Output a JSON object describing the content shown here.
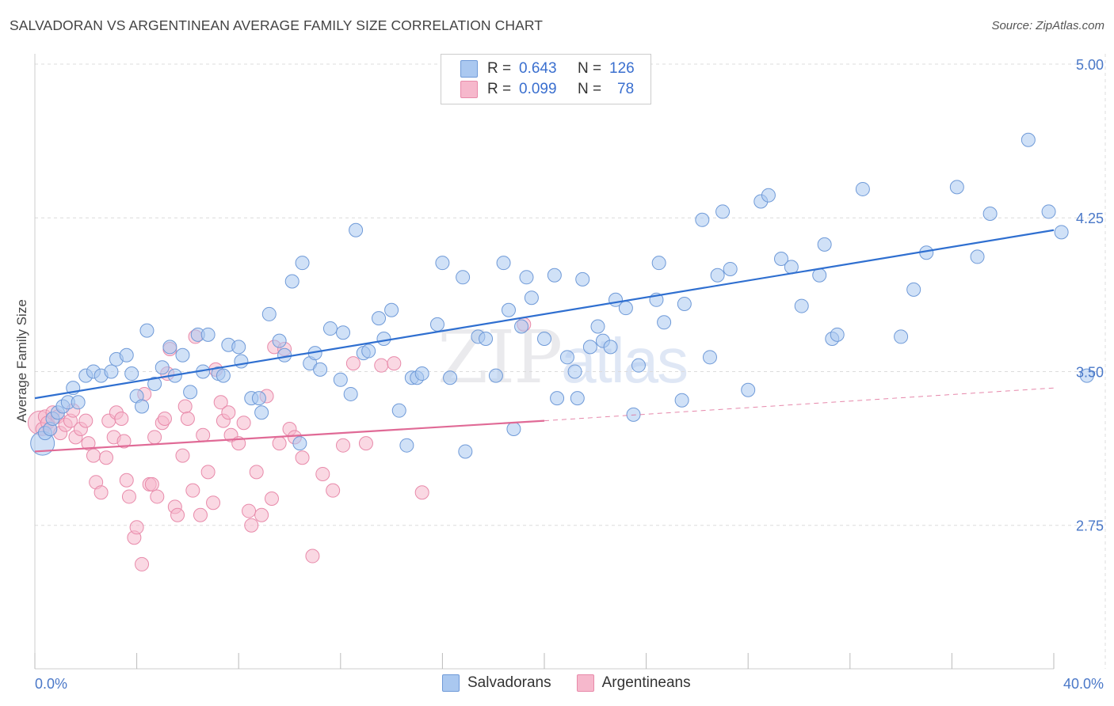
{
  "title": "SALVADORAN VS ARGENTINEAN AVERAGE FAMILY SIZE CORRELATION CHART",
  "source": "Source: ZipAtlas.com",
  "watermark": {
    "zip": "ZIP",
    "atlas": "atlas"
  },
  "legend": {
    "rows": [
      {
        "r_label": "R =",
        "r_value": "0.643",
        "n_label": "N =",
        "n_value": "126",
        "color": "#aac8f0"
      },
      {
        "r_label": "R =",
        "r_value": "0.099",
        "n_label": "N =",
        "n_value": "78",
        "color": "#f6b8cc"
      }
    ]
  },
  "bottom_legend": [
    {
      "label": "Salvadorans",
      "color": "#aac8f0"
    },
    {
      "label": "Argentineans",
      "color": "#f6b8cc"
    }
  ],
  "colors": {
    "blue_fill": "#aac8f0",
    "blue_stroke": "#6f9ad8",
    "blue_line": "#2f6fd0",
    "pink_fill": "#f6b8cc",
    "pink_stroke": "#e88aaa",
    "pink_line": "#e06a96",
    "grid": "#dcdcdc",
    "axis_label": "#4a78c8"
  },
  "chart_data": {
    "type": "scatter",
    "ylabel": "Average Family Size",
    "xlim": [
      0,
      40
    ],
    "ylim": [
      2.05,
      5.05
    ],
    "x_tick_labels": [
      "0.0%",
      "40.0%"
    ],
    "y_ticks": [
      2.75,
      3.5,
      4.25,
      5.0
    ],
    "y_tick_labels": [
      "2.75",
      "3.50",
      "4.25",
      "5.00"
    ],
    "grid": true,
    "series": [
      {
        "name": "Salvadorans",
        "r": 0.643,
        "n": 126,
        "trend": {
          "x": [
            0,
            40
          ],
          "y": [
            3.37,
            4.19
          ]
        },
        "points": [
          [
            0.3,
            3.15
          ],
          [
            0.4,
            3.2
          ],
          [
            0.6,
            3.22
          ],
          [
            0.7,
            3.27
          ],
          [
            0.9,
            3.3
          ],
          [
            1.1,
            3.33
          ],
          [
            1.3,
            3.35
          ],
          [
            1.5,
            3.42
          ],
          [
            1.7,
            3.35
          ],
          [
            2.0,
            3.48
          ],
          [
            2.3,
            3.5
          ],
          [
            2.6,
            3.48
          ],
          [
            3.0,
            3.5
          ],
          [
            3.2,
            3.56
          ],
          [
            3.6,
            3.58
          ],
          [
            3.8,
            3.49
          ],
          [
            4.0,
            3.38
          ],
          [
            4.2,
            3.33
          ],
          [
            4.4,
            3.7
          ],
          [
            4.7,
            3.44
          ],
          [
            5.0,
            3.52
          ],
          [
            5.3,
            3.62
          ],
          [
            5.5,
            3.48
          ],
          [
            5.8,
            3.58
          ],
          [
            6.1,
            3.4
          ],
          [
            6.4,
            3.68
          ],
          [
            6.6,
            3.5
          ],
          [
            6.8,
            3.68
          ],
          [
            7.2,
            3.49
          ],
          [
            7.4,
            3.48
          ],
          [
            7.6,
            3.63
          ],
          [
            8.0,
            3.62
          ],
          [
            8.1,
            3.55
          ],
          [
            8.5,
            3.37
          ],
          [
            8.8,
            3.37
          ],
          [
            8.9,
            3.3
          ],
          [
            9.2,
            3.78
          ],
          [
            9.6,
            3.65
          ],
          [
            9.8,
            3.58
          ],
          [
            10.1,
            3.94
          ],
          [
            10.4,
            3.15
          ],
          [
            10.5,
            4.03
          ],
          [
            10.8,
            3.54
          ],
          [
            11.0,
            3.59
          ],
          [
            11.2,
            3.51
          ],
          [
            11.6,
            3.71
          ],
          [
            12.0,
            3.46
          ],
          [
            12.1,
            3.69
          ],
          [
            12.4,
            3.39
          ],
          [
            12.6,
            4.19
          ],
          [
            12.9,
            3.59
          ],
          [
            13.1,
            3.6
          ],
          [
            13.5,
            3.76
          ],
          [
            13.7,
            3.66
          ],
          [
            14.0,
            3.8
          ],
          [
            14.3,
            3.31
          ],
          [
            14.6,
            3.14
          ],
          [
            14.8,
            3.47
          ],
          [
            15.0,
            3.47
          ],
          [
            15.2,
            3.49
          ],
          [
            15.8,
            3.73
          ],
          [
            16.0,
            4.03
          ],
          [
            16.3,
            3.47
          ],
          [
            16.8,
            3.96
          ],
          [
            16.9,
            3.11
          ],
          [
            17.4,
            3.67
          ],
          [
            17.7,
            3.66
          ],
          [
            18.1,
            3.48
          ],
          [
            18.4,
            4.03
          ],
          [
            18.6,
            3.8
          ],
          [
            18.8,
            3.22
          ],
          [
            19.1,
            3.72
          ],
          [
            19.3,
            3.96
          ],
          [
            19.5,
            3.86
          ],
          [
            20.0,
            3.66
          ],
          [
            20.4,
            3.97
          ],
          [
            20.5,
            3.37
          ],
          [
            20.9,
            3.57
          ],
          [
            21.2,
            3.5
          ],
          [
            21.3,
            3.37
          ],
          [
            21.5,
            3.95
          ],
          [
            21.8,
            3.62
          ],
          [
            22.1,
            3.72
          ],
          [
            22.3,
            3.65
          ],
          [
            22.6,
            3.62
          ],
          [
            22.8,
            3.85
          ],
          [
            23.2,
            3.81
          ],
          [
            23.5,
            3.29
          ],
          [
            23.7,
            3.53
          ],
          [
            24.4,
            3.85
          ],
          [
            24.5,
            4.03
          ],
          [
            24.7,
            3.74
          ],
          [
            25.4,
            3.36
          ],
          [
            25.5,
            3.83
          ],
          [
            26.2,
            4.24
          ],
          [
            26.5,
            3.57
          ],
          [
            26.8,
            3.97
          ],
          [
            27.0,
            4.28
          ],
          [
            27.3,
            4.0
          ],
          [
            28.0,
            3.41
          ],
          [
            28.5,
            4.33
          ],
          [
            28.8,
            4.36
          ],
          [
            29.3,
            4.05
          ],
          [
            29.7,
            4.01
          ],
          [
            30.1,
            3.82
          ],
          [
            30.8,
            3.97
          ],
          [
            31.0,
            4.12
          ],
          [
            31.3,
            3.66
          ],
          [
            31.5,
            3.68
          ],
          [
            32.5,
            4.39
          ],
          [
            34.0,
            3.67
          ],
          [
            34.5,
            3.9
          ],
          [
            35.0,
            4.08
          ],
          [
            36.2,
            4.4
          ],
          [
            37.0,
            4.06
          ],
          [
            37.5,
            4.27
          ],
          [
            39.0,
            4.63
          ],
          [
            39.8,
            4.28
          ],
          [
            40.3,
            4.18
          ],
          [
            41.3,
            3.48
          ]
        ]
      },
      {
        "name": "Argentineans",
        "r": 0.099,
        "n": 78,
        "trend": {
          "x": [
            0,
            20
          ],
          "y": [
            3.11,
            3.26
          ]
        },
        "trend_extension": {
          "x": [
            20,
            40
          ],
          "y": [
            3.26,
            3.42
          ]
        },
        "points": [
          [
            0.2,
            3.25
          ],
          [
            0.3,
            3.22
          ],
          [
            0.4,
            3.28
          ],
          [
            0.5,
            3.25
          ],
          [
            0.6,
            3.22
          ],
          [
            0.7,
            3.3
          ],
          [
            0.9,
            3.28
          ],
          [
            1.0,
            3.2
          ],
          [
            1.2,
            3.24
          ],
          [
            1.4,
            3.26
          ],
          [
            1.5,
            3.31
          ],
          [
            1.6,
            3.18
          ],
          [
            1.8,
            3.22
          ],
          [
            2.0,
            3.26
          ],
          [
            2.1,
            3.15
          ],
          [
            2.3,
            3.09
          ],
          [
            2.4,
            2.96
          ],
          [
            2.6,
            2.91
          ],
          [
            2.8,
            3.08
          ],
          [
            2.9,
            3.26
          ],
          [
            3.1,
            3.18
          ],
          [
            3.2,
            3.3
          ],
          [
            3.4,
            3.27
          ],
          [
            3.5,
            3.16
          ],
          [
            3.6,
            2.97
          ],
          [
            3.7,
            2.89
          ],
          [
            3.9,
            2.69
          ],
          [
            4.0,
            2.74
          ],
          [
            4.2,
            2.56
          ],
          [
            4.3,
            3.39
          ],
          [
            4.5,
            2.95
          ],
          [
            4.6,
            2.95
          ],
          [
            4.7,
            3.18
          ],
          [
            4.8,
            2.89
          ],
          [
            5.0,
            3.25
          ],
          [
            5.1,
            3.27
          ],
          [
            5.2,
            3.49
          ],
          [
            5.3,
            3.61
          ],
          [
            5.5,
            2.84
          ],
          [
            5.6,
            2.8
          ],
          [
            5.8,
            3.09
          ],
          [
            5.9,
            3.33
          ],
          [
            6.0,
            3.27
          ],
          [
            6.2,
            2.92
          ],
          [
            6.3,
            3.67
          ],
          [
            6.5,
            2.8
          ],
          [
            6.6,
            3.19
          ],
          [
            6.8,
            3.01
          ],
          [
            7.0,
            2.86
          ],
          [
            7.1,
            3.51
          ],
          [
            7.3,
            3.35
          ],
          [
            7.4,
            3.26
          ],
          [
            7.6,
            3.3
          ],
          [
            7.7,
            3.19
          ],
          [
            8.0,
            3.15
          ],
          [
            8.2,
            3.25
          ],
          [
            8.4,
            2.82
          ],
          [
            8.5,
            2.75
          ],
          [
            8.7,
            3.01
          ],
          [
            8.9,
            2.8
          ],
          [
            9.1,
            3.38
          ],
          [
            9.3,
            2.88
          ],
          [
            9.4,
            3.62
          ],
          [
            9.6,
            3.15
          ],
          [
            9.8,
            3.61
          ],
          [
            10.0,
            3.22
          ],
          [
            10.2,
            3.18
          ],
          [
            10.5,
            3.08
          ],
          [
            10.9,
            2.6
          ],
          [
            11.3,
            3.0
          ],
          [
            11.7,
            2.92
          ],
          [
            12.1,
            3.14
          ],
          [
            12.5,
            3.54
          ],
          [
            13.0,
            3.15
          ],
          [
            13.6,
            3.53
          ],
          [
            14.1,
            3.54
          ],
          [
            15.2,
            2.91
          ],
          [
            19.2,
            3.73
          ]
        ]
      }
    ]
  }
}
